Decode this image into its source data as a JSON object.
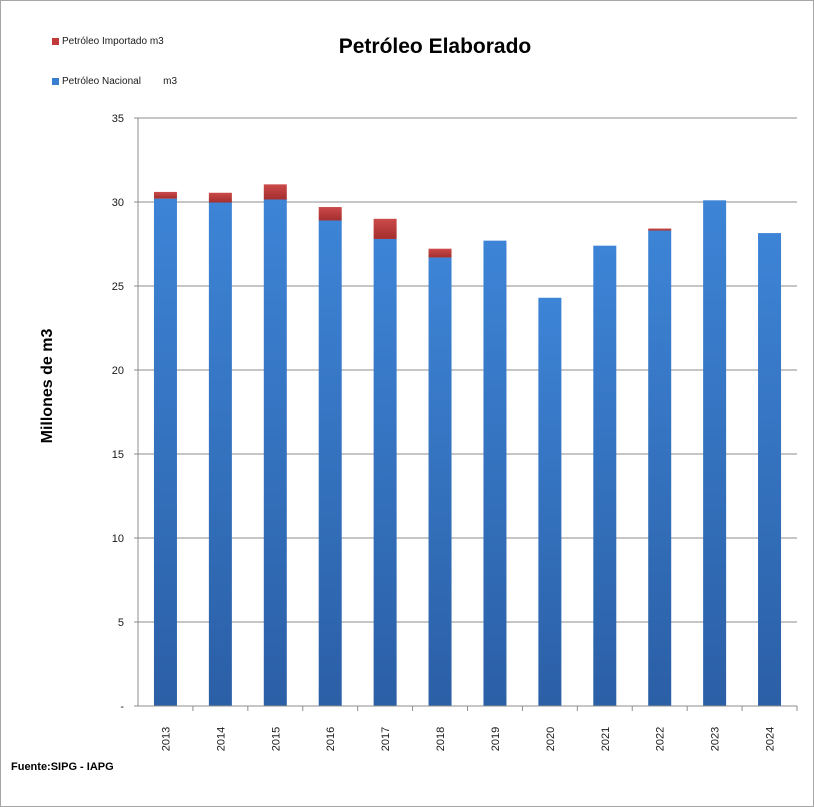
{
  "chart_data": {
    "type": "bar",
    "stacked": true,
    "title": "Petróleo Elaborado",
    "xlabel": "",
    "ylabel": "Millones de m3",
    "ylim": [
      0,
      35
    ],
    "yticks": [
      "-",
      "5",
      "10",
      "15",
      "20",
      "25",
      "30",
      "35"
    ],
    "grid": true,
    "legend_position": "top-left",
    "categories": [
      "2013",
      "2014",
      "2015",
      "2016",
      "2017",
      "2018",
      "2019",
      "2020",
      "2021",
      "2022",
      "2023",
      "2024"
    ],
    "series": [
      {
        "name": "Petróleo Nacional        m3",
        "color": "#3a7fcf",
        "values": [
          30.2,
          29.97,
          30.15,
          28.9,
          27.8,
          26.7,
          27.7,
          24.3,
          27.4,
          28.3,
          30.1,
          28.15
        ]
      },
      {
        "name": "Petróleo Importado m3",
        "color": "#c0393b",
        "values": [
          0.4,
          0.58,
          0.9,
          0.8,
          1.2,
          0.52,
          0.0,
          0.0,
          0.0,
          0.12,
          0.0,
          0.0
        ]
      }
    ]
  },
  "source": "Fuente:SIPG - IAPG"
}
